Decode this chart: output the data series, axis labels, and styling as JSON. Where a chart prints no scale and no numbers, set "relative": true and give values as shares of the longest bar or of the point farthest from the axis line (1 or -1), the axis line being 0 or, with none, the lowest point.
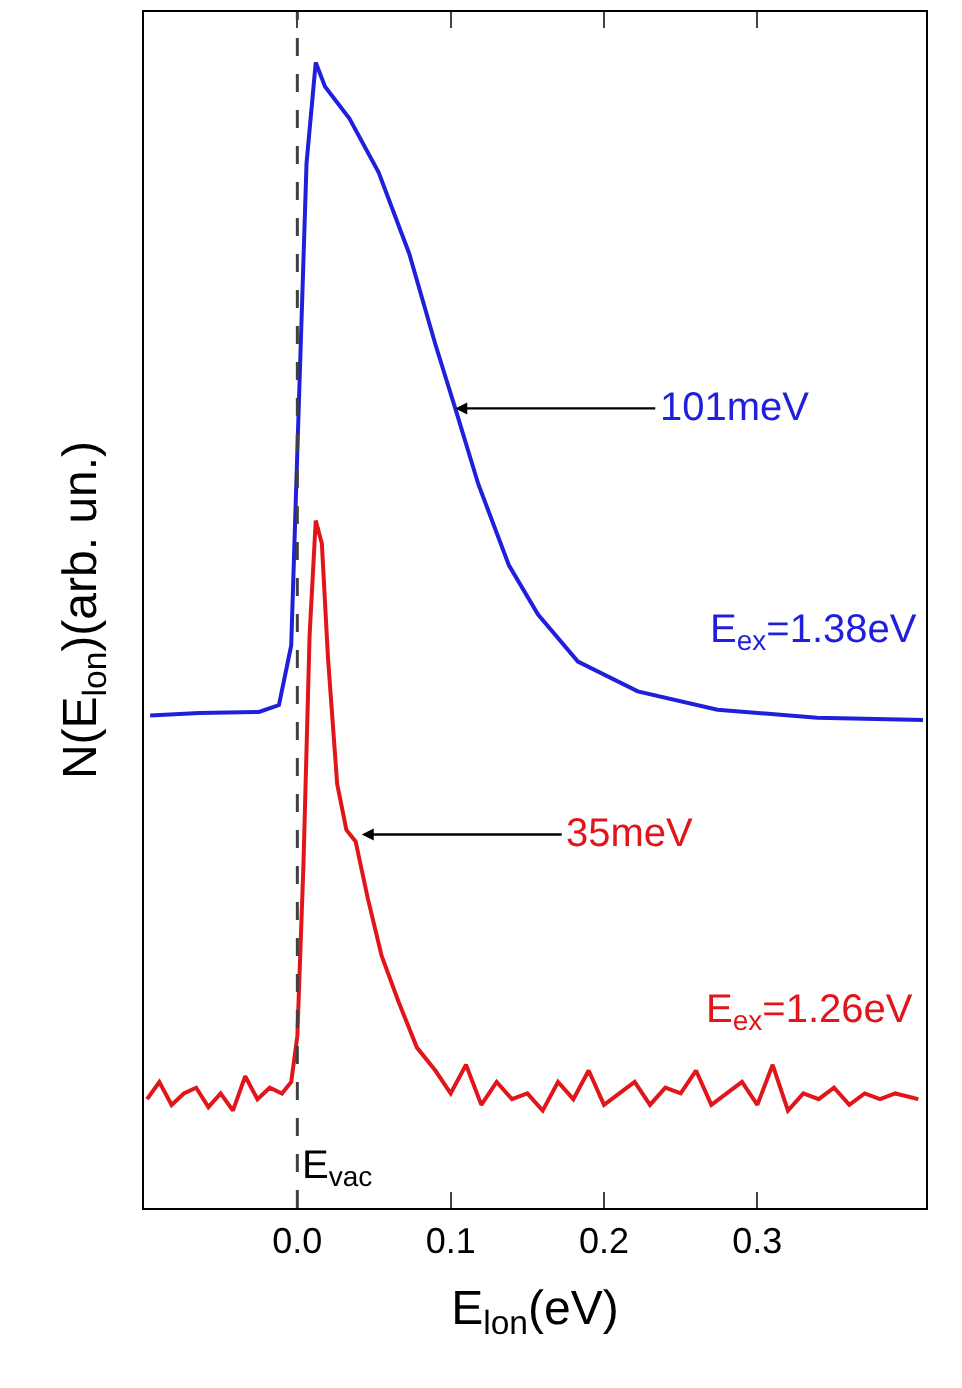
{
  "chart_data": {
    "type": "line",
    "relative": true,
    "xlabel": "E$_{lon}$(eV)",
    "ylabel": "N(E$_{lon}$)(arb. un.)",
    "xlim": [
      -0.1,
      0.41
    ],
    "xticks": [
      {
        "value": 0.0,
        "label": "0.0"
      },
      {
        "value": 0.1,
        "label": "0.1"
      },
      {
        "value": 0.2,
        "label": "0.2"
      },
      {
        "value": 0.3,
        "label": "0.3"
      }
    ],
    "tick_labels": "x",
    "line_style": "solid",
    "series": [
      {
        "name": "E$_{ex}$=1.38eV",
        "color": "#1f1fdc",
        "x": [
          -0.096,
          -0.064,
          -0.025,
          -0.012,
          -0.004,
          0.001,
          0.006,
          0.012,
          0.018,
          0.034,
          0.053,
          0.073,
          0.09,
          0.103,
          0.118,
          0.138,
          0.157,
          0.183,
          0.222,
          0.274,
          0.339,
          0.408
        ],
        "values": [
          0.43,
          0.432,
          0.433,
          0.439,
          0.491,
          0.702,
          0.912,
          1.0,
          0.979,
          0.951,
          0.904,
          0.833,
          0.754,
          0.698,
          0.632,
          0.561,
          0.518,
          0.477,
          0.451,
          0.435,
          0.428,
          0.426
        ]
      },
      {
        "name": "E$_{ex}$=1.26eV",
        "color": "#e0161b",
        "x": [
          -0.098,
          -0.09,
          -0.082,
          -0.074,
          -0.066,
          -0.058,
          -0.05,
          -0.042,
          -0.034,
          -0.026,
          -0.018,
          -0.01,
          -0.004,
          0.0,
          0.004,
          0.008,
          0.012,
          0.016,
          0.02,
          0.026,
          0.032,
          0.038,
          0.046,
          0.055,
          0.066,
          0.078,
          0.09,
          0.1,
          0.11,
          0.12,
          0.13,
          0.14,
          0.15,
          0.16,
          0.17,
          0.18,
          0.19,
          0.2,
          0.21,
          0.22,
          0.23,
          0.24,
          0.25,
          0.26,
          0.27,
          0.28,
          0.29,
          0.3,
          0.31,
          0.32,
          0.33,
          0.34,
          0.35,
          0.36,
          0.37,
          0.38,
          0.39,
          0.405
        ],
        "values": [
          0.095,
          0.11,
          0.09,
          0.1,
          0.105,
          0.088,
          0.1,
          0.085,
          0.115,
          0.095,
          0.105,
          0.1,
          0.11,
          0.15,
          0.3,
          0.5,
          0.6,
          0.58,
          0.48,
          0.37,
          0.33,
          0.32,
          0.27,
          0.22,
          0.18,
          0.14,
          0.12,
          0.1,
          0.125,
          0.09,
          0.11,
          0.095,
          0.1,
          0.085,
          0.11,
          0.095,
          0.12,
          0.09,
          0.1,
          0.11,
          0.09,
          0.105,
          0.1,
          0.12,
          0.09,
          0.1,
          0.11,
          0.09,
          0.125,
          0.085,
          0.1,
          0.095,
          0.105,
          0.09,
          0.1,
          0.095,
          0.1,
          0.095
        ]
      }
    ],
    "annotations": [
      {
        "text": "101meV",
        "x": 0.103,
        "y": 0.698
      },
      {
        "text": "35meV",
        "x": 0.042,
        "y": 0.326
      }
    ],
    "ref_lines": [
      {
        "axis": "x",
        "value": 0,
        "label": "E$_{vac}$",
        "color": "#404040",
        "line_style": "dashed"
      }
    ]
  }
}
